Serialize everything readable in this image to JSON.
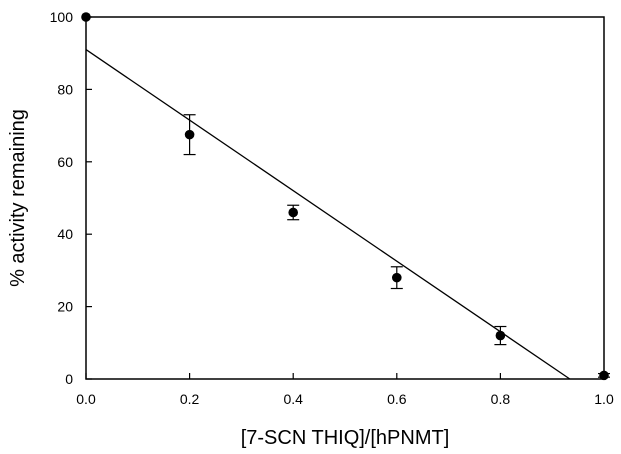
{
  "chart_data": {
    "type": "scatter",
    "title": "",
    "xlabel": "[7-SCN THIQ]/[hPNMT]",
    "ylabel": "% activity remaining",
    "xlim": [
      0.0,
      1.0
    ],
    "ylim": [
      0,
      100
    ],
    "x_ticks": [
      0.0,
      0.2,
      0.4,
      0.6,
      0.8,
      1.0
    ],
    "x_tick_labels": [
      "0.0",
      "0.2",
      "0.4",
      "0.6",
      "0.8",
      "1.0"
    ],
    "y_ticks": [
      0,
      20,
      40,
      60,
      80,
      100
    ],
    "y_tick_labels": [
      "0",
      "20",
      "40",
      "60",
      "80",
      "100"
    ],
    "grid": false,
    "legend": false,
    "series": [
      {
        "x": [
          0.0,
          0.2,
          0.4,
          0.6,
          0.8,
          1.0
        ],
        "y": [
          100,
          67.5,
          46,
          28,
          12,
          1
        ],
        "error": [
          0,
          5.5,
          2,
          3,
          2.5,
          0.5
        ],
        "marker": "filled-circle",
        "color": "#000000"
      }
    ],
    "fit_line": {
      "x": [
        0.0,
        0.934
      ],
      "y": [
        91,
        0
      ],
      "color": "#000000"
    }
  }
}
